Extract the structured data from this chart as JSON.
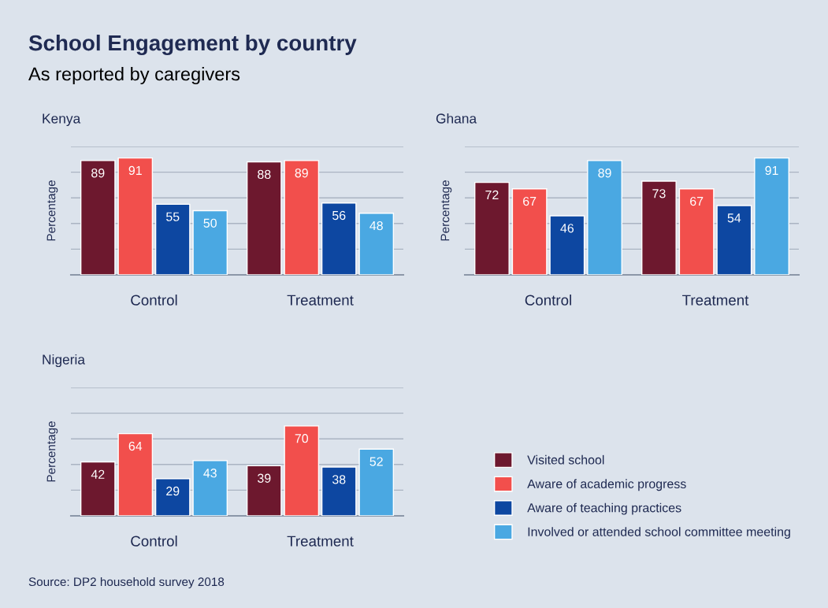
{
  "chart_data": [
    {
      "type": "bar",
      "title": "Kenya",
      "ylabel": "Percentage",
      "annotations": [
        "School Engagement by country",
        "As reported by caregivers"
      ],
      "categories": [
        "Control",
        "Treatment"
      ],
      "ylim": [
        0,
        100
      ],
      "yticks": [
        {
          "value": 0,
          "label": null
        },
        {
          "value": 20,
          "label": null
        },
        {
          "value": 40,
          "label": null
        },
        {
          "value": 60,
          "label": null
        },
        {
          "value": 80,
          "label": null
        },
        {
          "value": 100,
          "label": null
        }
      ],
      "tick_labels": "x",
      "grid": "y",
      "data_labels": true,
      "series": [
        {
          "color": "#6d182e",
          "values": [
            89,
            88
          ]
        },
        {
          "color": "#f24f4c",
          "values": [
            91,
            89
          ]
        },
        {
          "color": "#0d47a1",
          "values": [
            55,
            56
          ]
        },
        {
          "color": "#4aa8e2",
          "values": [
            50,
            48
          ]
        }
      ]
    },
    {
      "type": "bar",
      "title": "Ghana",
      "ylabel": "Percentage",
      "categories": [
        "Control",
        "Treatment"
      ],
      "ylim": [
        0,
        100
      ],
      "yticks": [
        {
          "value": 0,
          "label": null
        },
        {
          "value": 20,
          "label": null
        },
        {
          "value": 40,
          "label": null
        },
        {
          "value": 60,
          "label": null
        },
        {
          "value": 80,
          "label": null
        },
        {
          "value": 100,
          "label": null
        }
      ],
      "tick_labels": "x",
      "grid": "y",
      "data_labels": true,
      "series": [
        {
          "color": "#6d182e",
          "values": [
            72,
            73
          ]
        },
        {
          "color": "#f24f4c",
          "values": [
            67,
            67
          ]
        },
        {
          "color": "#0d47a1",
          "values": [
            46,
            54
          ]
        },
        {
          "color": "#4aa8e2",
          "values": [
            89,
            91
          ]
        }
      ]
    },
    {
      "type": "bar",
      "title": "Nigeria",
      "ylabel": "Percentage",
      "annotations": [
        "Source: DP2 household survey 2018"
      ],
      "categories": [
        "Control",
        "Treatment"
      ],
      "ylim": [
        0,
        100
      ],
      "yticks": [
        {
          "value": 0,
          "label": null
        },
        {
          "value": 20,
          "label": null
        },
        {
          "value": 40,
          "label": null
        },
        {
          "value": 60,
          "label": null
        },
        {
          "value": 80,
          "label": null
        },
        {
          "value": 100,
          "label": null
        }
      ],
      "tick_labels": "x",
      "grid": "y",
      "data_labels": true,
      "legend": "right",
      "series": [
        {
          "name": "Visited school",
          "color": "#6d182e",
          "values": [
            42,
            39
          ]
        },
        {
          "name": "Aware of academic progress",
          "color": "#f24f4c",
          "values": [
            64,
            70
          ]
        },
        {
          "name": "Aware of teaching practices",
          "color": "#0d47a1",
          "values": [
            29,
            38
          ]
        },
        {
          "name": "Involved or attended school committee meeting",
          "color": "#4aa8e2",
          "values": [
            43,
            52
          ]
        }
      ]
    }
  ]
}
